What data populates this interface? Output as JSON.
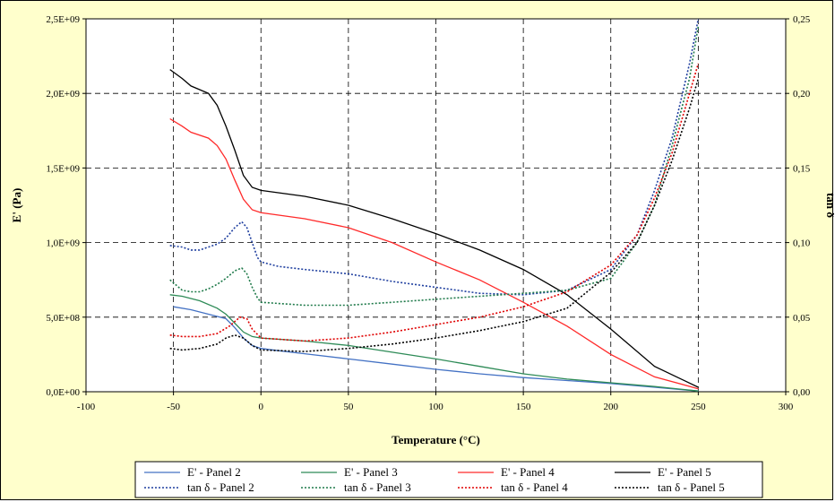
{
  "colors": {
    "background": "#ffffcc",
    "plot_area": "#ffffff",
    "panel2": "#4472c4",
    "panel3": "#2e8b57",
    "panel4": "#ff2a2a",
    "panel5": "#000000",
    "panel2_tan": "#1f3f9f",
    "panel3_tan": "#1f7a4a",
    "panel4_tan": "#e00000"
  },
  "chart_data": {
    "type": "line",
    "title": "",
    "xlabel": "Temperature (°C)",
    "ylabel": "E' (Pa)",
    "y2label": "tan δ",
    "xlim": [
      -100,
      300
    ],
    "ylim": [
      0,
      2500000000
    ],
    "y2lim": [
      0,
      0.25
    ],
    "grid": true,
    "legend_position": "bottom",
    "x_ticks": [
      "-100",
      "-50",
      "0",
      "50",
      "100",
      "150",
      "200",
      "250",
      "300"
    ],
    "y_ticks": [
      "0,0E+00",
      "5,0E+08",
      "1,0E+09",
      "1,5E+09",
      "2,0E+09",
      "2,5E+09"
    ],
    "y2_ticks": [
      "0,00",
      "0,05",
      "0,10",
      "0,15",
      "0,20",
      "0,25"
    ],
    "series": [
      {
        "name": "E' - Panel 2",
        "axis": "left",
        "dash": "solid",
        "color": "#4472c4",
        "points": [
          [
            -50,
            570000000
          ],
          [
            -40,
            550000000
          ],
          [
            -30,
            520000000
          ],
          [
            -20,
            490000000
          ],
          [
            -15,
            430000000
          ],
          [
            -10,
            360000000
          ],
          [
            -5,
            310000000
          ],
          [
            0,
            290000000
          ],
          [
            10,
            275000000
          ],
          [
            25,
            255000000
          ],
          [
            50,
            220000000
          ],
          [
            75,
            185000000
          ],
          [
            100,
            150000000
          ],
          [
            125,
            120000000
          ],
          [
            150,
            95000000
          ],
          [
            175,
            75000000
          ],
          [
            200,
            55000000
          ],
          [
            225,
            30000000
          ],
          [
            250,
            5000000
          ]
        ]
      },
      {
        "name": "E' - Panel 3",
        "axis": "left",
        "dash": "solid",
        "color": "#2e8b57",
        "points": [
          [
            -52,
            650000000
          ],
          [
            -45,
            640000000
          ],
          [
            -35,
            610000000
          ],
          [
            -25,
            560000000
          ],
          [
            -20,
            520000000
          ],
          [
            -15,
            460000000
          ],
          [
            -10,
            400000000
          ],
          [
            -5,
            370000000
          ],
          [
            0,
            360000000
          ],
          [
            25,
            340000000
          ],
          [
            50,
            310000000
          ],
          [
            75,
            265000000
          ],
          [
            100,
            220000000
          ],
          [
            125,
            170000000
          ],
          [
            150,
            120000000
          ],
          [
            175,
            85000000
          ],
          [
            200,
            60000000
          ],
          [
            225,
            35000000
          ],
          [
            250,
            5000000
          ]
        ]
      },
      {
        "name": "E' - Panel 4",
        "axis": "left",
        "dash": "solid",
        "color": "#ff2a2a",
        "points": [
          [
            -52,
            1830000000
          ],
          [
            -45,
            1780000000
          ],
          [
            -40,
            1740000000
          ],
          [
            -30,
            1700000000
          ],
          [
            -25,
            1650000000
          ],
          [
            -20,
            1560000000
          ],
          [
            -15,
            1420000000
          ],
          [
            -10,
            1290000000
          ],
          [
            -5,
            1220000000
          ],
          [
            0,
            1200000000
          ],
          [
            25,
            1160000000
          ],
          [
            50,
            1100000000
          ],
          [
            75,
            1000000000
          ],
          [
            100,
            870000000
          ],
          [
            125,
            750000000
          ],
          [
            150,
            600000000
          ],
          [
            175,
            440000000
          ],
          [
            200,
            250000000
          ],
          [
            225,
            100000000
          ],
          [
            250,
            20000000
          ]
        ]
      },
      {
        "name": "E' - Panel 5",
        "axis": "left",
        "dash": "solid",
        "color": "#000000",
        "points": [
          [
            -52,
            2160000000
          ],
          [
            -45,
            2100000000
          ],
          [
            -40,
            2050000000
          ],
          [
            -30,
            2000000000
          ],
          [
            -25,
            1920000000
          ],
          [
            -20,
            1780000000
          ],
          [
            -15,
            1620000000
          ],
          [
            -10,
            1450000000
          ],
          [
            -5,
            1370000000
          ],
          [
            0,
            1350000000
          ],
          [
            25,
            1310000000
          ],
          [
            50,
            1250000000
          ],
          [
            75,
            1160000000
          ],
          [
            100,
            1060000000
          ],
          [
            125,
            950000000
          ],
          [
            150,
            820000000
          ],
          [
            175,
            650000000
          ],
          [
            200,
            420000000
          ],
          [
            225,
            170000000
          ],
          [
            250,
            30000000
          ]
        ]
      },
      {
        "name": "tan δ - Panel 2",
        "axis": "right",
        "dash": "dotted",
        "color": "#1f3f9f",
        "points": [
          [
            -52,
            0.098
          ],
          [
            -45,
            0.097
          ],
          [
            -40,
            0.095
          ],
          [
            -35,
            0.095
          ],
          [
            -30,
            0.097
          ],
          [
            -25,
            0.099
          ],
          [
            -20,
            0.103
          ],
          [
            -15,
            0.11
          ],
          [
            -11,
            0.114
          ],
          [
            -8,
            0.11
          ],
          [
            -5,
            0.1
          ],
          [
            -2,
            0.09
          ],
          [
            0,
            0.087
          ],
          [
            10,
            0.084
          ],
          [
            25,
            0.082
          ],
          [
            50,
            0.079
          ],
          [
            75,
            0.074
          ],
          [
            100,
            0.07
          ],
          [
            125,
            0.066
          ],
          [
            150,
            0.065
          ],
          [
            175,
            0.068
          ],
          [
            200,
            0.082
          ],
          [
            215,
            0.105
          ],
          [
            225,
            0.135
          ],
          [
            235,
            0.17
          ],
          [
            245,
            0.22
          ],
          [
            250,
            0.25
          ]
        ]
      },
      {
        "name": "tan δ - Panel 3",
        "axis": "right",
        "dash": "dotted",
        "color": "#1f7a4a",
        "points": [
          [
            -52,
            0.075
          ],
          [
            -45,
            0.068
          ],
          [
            -40,
            0.067
          ],
          [
            -35,
            0.067
          ],
          [
            -30,
            0.069
          ],
          [
            -25,
            0.072
          ],
          [
            -20,
            0.076
          ],
          [
            -15,
            0.081
          ],
          [
            -11,
            0.083
          ],
          [
            -8,
            0.079
          ],
          [
            -5,
            0.07
          ],
          [
            -2,
            0.063
          ],
          [
            0,
            0.06
          ],
          [
            25,
            0.058
          ],
          [
            50,
            0.058
          ],
          [
            75,
            0.06
          ],
          [
            100,
            0.062
          ],
          [
            125,
            0.064
          ],
          [
            150,
            0.066
          ],
          [
            175,
            0.068
          ],
          [
            200,
            0.076
          ],
          [
            215,
            0.1
          ],
          [
            225,
            0.125
          ],
          [
            235,
            0.165
          ],
          [
            245,
            0.21
          ],
          [
            250,
            0.245
          ]
        ]
      },
      {
        "name": "tan δ - Panel 4",
        "axis": "right",
        "dash": "dotted",
        "color": "#e00000",
        "points": [
          [
            -52,
            0.038
          ],
          [
            -45,
            0.037
          ],
          [
            -35,
            0.037
          ],
          [
            -25,
            0.039
          ],
          [
            -18,
            0.044
          ],
          [
            -12,
            0.05
          ],
          [
            -8,
            0.049
          ],
          [
            -5,
            0.042
          ],
          [
            0,
            0.036
          ],
          [
            25,
            0.034
          ],
          [
            50,
            0.036
          ],
          [
            75,
            0.04
          ],
          [
            100,
            0.045
          ],
          [
            125,
            0.05
          ],
          [
            150,
            0.057
          ],
          [
            175,
            0.067
          ],
          [
            200,
            0.085
          ],
          [
            215,
            0.105
          ],
          [
            225,
            0.13
          ],
          [
            235,
            0.16
          ],
          [
            245,
            0.2
          ],
          [
            250,
            0.22
          ]
        ]
      },
      {
        "name": "tan δ - Panel 5",
        "axis": "right",
        "dash": "dotted",
        "color": "#000000",
        "points": [
          [
            -52,
            0.029
          ],
          [
            -45,
            0.028
          ],
          [
            -35,
            0.029
          ],
          [
            -25,
            0.032
          ],
          [
            -20,
            0.036
          ],
          [
            -15,
            0.038
          ],
          [
            -10,
            0.036
          ],
          [
            -5,
            0.031
          ],
          [
            0,
            0.028
          ],
          [
            25,
            0.027
          ],
          [
            50,
            0.029
          ],
          [
            75,
            0.032
          ],
          [
            100,
            0.036
          ],
          [
            125,
            0.041
          ],
          [
            150,
            0.047
          ],
          [
            175,
            0.056
          ],
          [
            200,
            0.08
          ],
          [
            215,
            0.1
          ],
          [
            225,
            0.125
          ],
          [
            235,
            0.155
          ],
          [
            245,
            0.19
          ],
          [
            250,
            0.21
          ]
        ]
      }
    ]
  }
}
